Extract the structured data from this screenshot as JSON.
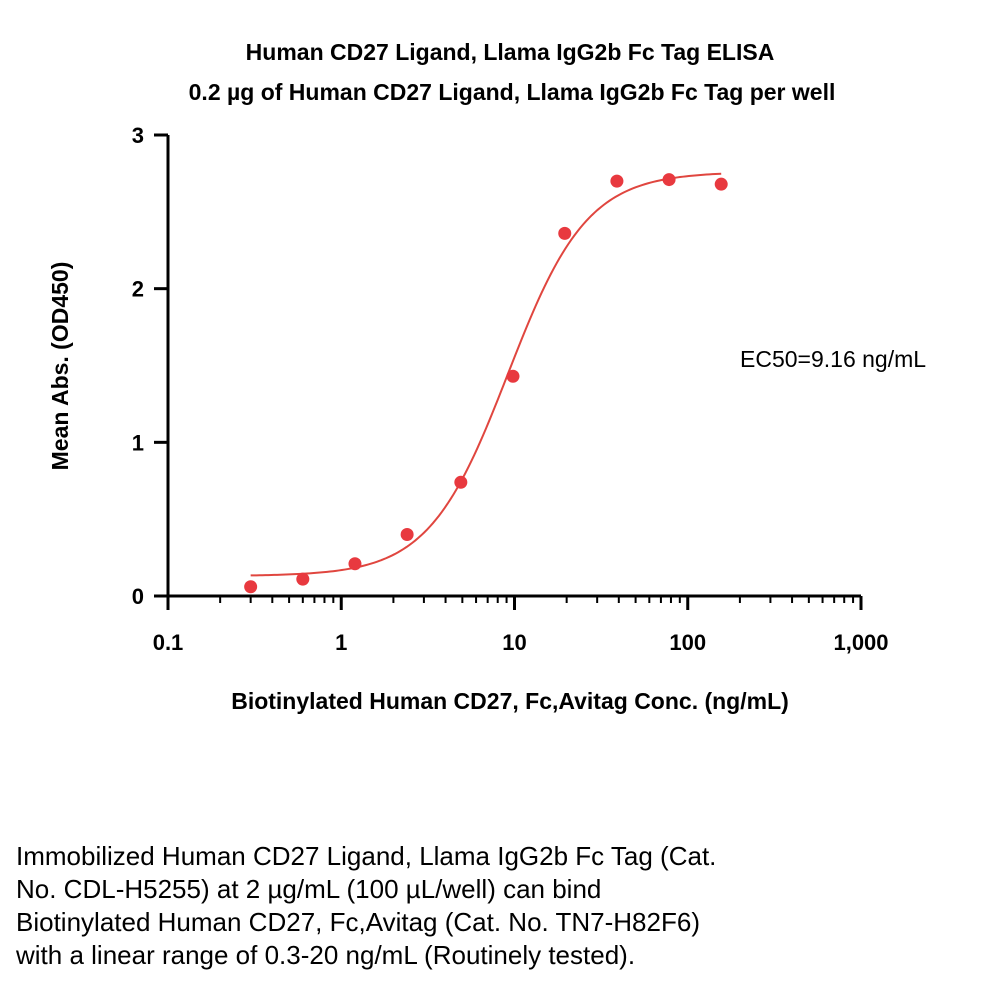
{
  "chart_data": {
    "type": "scatter",
    "title": "Human CD27 Ligand, Llama IgG2b Fc Tag ELISA",
    "subtitle": "0.2 µg of Human CD27 Ligand, Llama IgG2b Fc Tag per well",
    "xlabel": "Biotinylated Human CD27, Fc,Avitag Conc. (ng/mL)",
    "ylabel": "Mean Abs. (OD450)",
    "x_scale": "log",
    "xlim": [
      0.1,
      1000
    ],
    "ylim": [
      0,
      3
    ],
    "x_ticks": [
      0.1,
      1,
      10,
      100,
      1000
    ],
    "x_tick_labels": [
      "0.1",
      "1",
      "10",
      "100",
      "1,000"
    ],
    "y_ticks": [
      0,
      1,
      2,
      3
    ],
    "y_tick_labels": [
      "0",
      "1",
      "2",
      "3"
    ],
    "grid": false,
    "points": {
      "x": [
        0.3,
        0.6,
        1.2,
        2.4,
        4.9,
        9.8,
        19.5,
        39,
        78,
        156
      ],
      "y": [
        0.06,
        0.11,
        0.21,
        0.4,
        0.74,
        1.43,
        2.36,
        2.7,
        2.71,
        2.68
      ]
    },
    "fit": {
      "model": "4PL",
      "bottom": 0.13,
      "top": 2.76,
      "ec50": 9.16,
      "hill": 1.9,
      "x_range": [
        0.3,
        156
      ]
    },
    "annotation": "EC50=9.16 ng/mL",
    "colors": {
      "points": "#e8393f",
      "fit": "#e0463f",
      "axis": "#000000"
    }
  },
  "caption": [
    "Immobilized Human CD27 Ligand, Llama IgG2b Fc Tag (Cat.",
    "No. CDL-H5255) at 2 µg/mL (100 µL/well) can bind",
    "Biotinylated Human CD27, Fc,Avitag (Cat. No. TN7-H82F6)",
    "with a linear range of 0.3-20 ng/mL (Routinely tested)."
  ]
}
